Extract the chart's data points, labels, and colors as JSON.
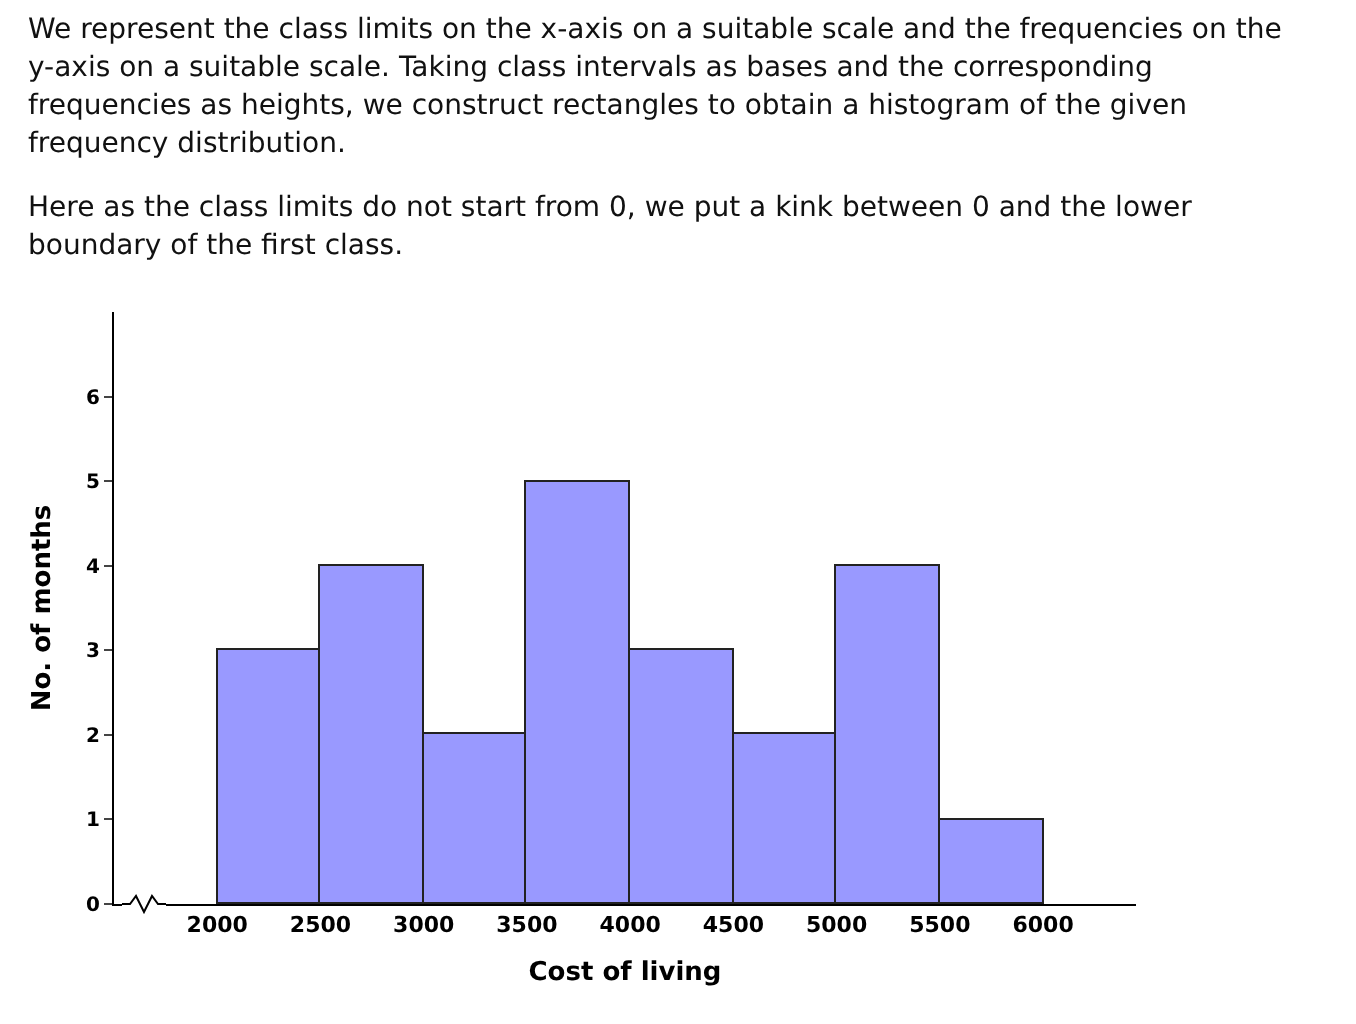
{
  "chart_data": {
    "type": "histogram",
    "annotations": [
      "We represent the class limits on the x-axis on a suitable scale and the frequencies on the y-axis on a suitable scale. Taking class intervals as bases and the corresponding frequencies as heights, we construct rectangles to obtain a histogram of the given frequency distribution.",
      "Here as the class limits do not start from 0, we put a kink between 0 and the lower boundary of the first class."
    ],
    "xlabel": "Cost of living",
    "ylabel": "No. of months",
    "bins": [
      2000,
      2500,
      3000,
      3500,
      4000,
      4500,
      5000,
      5500,
      6000
    ],
    "values": [
      3,
      4,
      2,
      5,
      3,
      2,
      4,
      1
    ],
    "color": "#9999ff",
    "xlim": [
      1500,
      6450
    ],
    "xticks": [
      2000,
      2500,
      3000,
      3500,
      4000,
      4500,
      5000,
      5500,
      6000
    ],
    "ylim": [
      0,
      7
    ],
    "yticks": [
      0,
      1,
      2,
      3,
      4,
      5,
      6
    ],
    "grid": false
  }
}
